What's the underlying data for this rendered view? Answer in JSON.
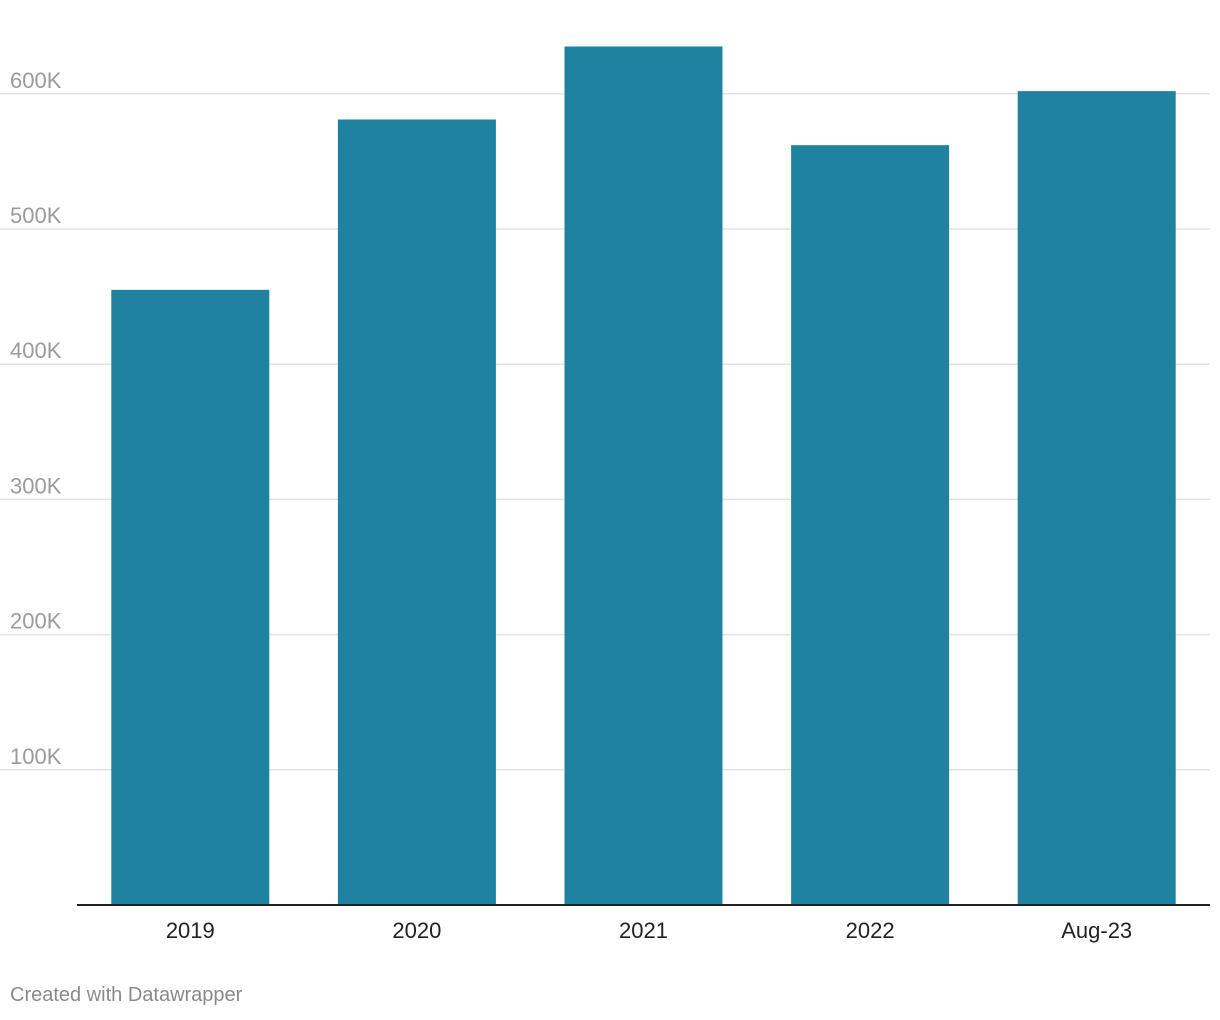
{
  "chart_data": {
    "type": "bar",
    "categories": [
      "2019",
      "2020",
      "2021",
      "2022",
      "Aug-23"
    ],
    "values": [
      455000,
      581000,
      635000,
      562000,
      602000
    ],
    "yticks": [
      100000,
      200000,
      300000,
      400000,
      500000,
      600000
    ],
    "ytick_labels": [
      "100K",
      "200K",
      "300K",
      "400K",
      "500K",
      "600K"
    ],
    "ylim": [
      0,
      635000
    ],
    "grid": true,
    "bar_color": "#1f82a1",
    "grid_color": "#e3e3e3",
    "axis_color": "#222222"
  },
  "footer": {
    "credit": "Created with Datawrapper"
  }
}
